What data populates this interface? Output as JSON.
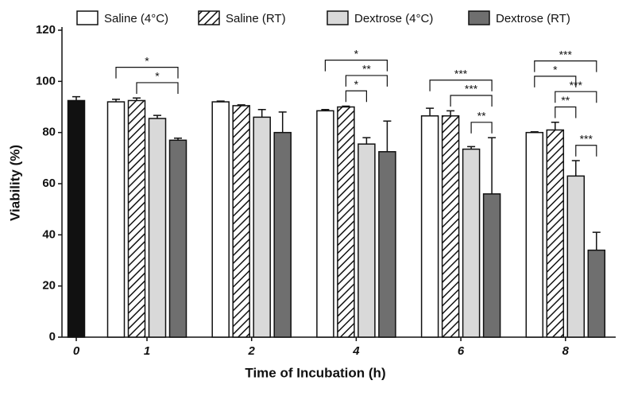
{
  "chart_data": {
    "type": "bar",
    "x_label": "Time of Incubation (h)",
    "y_label": "Viability (%)",
    "categories": [
      "0",
      "1",
      "2",
      "4",
      "6",
      "8"
    ],
    "ylim": [
      0,
      120
    ],
    "yticks": [
      0,
      20,
      40,
      60,
      80,
      100,
      120
    ],
    "series": [
      {
        "color": "#111111",
        "values": [
          92.5,
          null,
          null,
          null,
          null,
          null
        ],
        "errors": [
          1.5,
          null,
          null,
          null,
          null,
          null
        ]
      },
      {
        "name": "Saline (4°C)",
        "color": "#ffffff",
        "values": [
          null,
          92,
          92,
          88.5,
          86.5,
          80
        ],
        "errors": [
          null,
          1,
          0.3,
          0.5,
          3,
          0.3
        ]
      },
      {
        "name": "Saline (RT)",
        "color": "#ffffff",
        "pattern": "hatch",
        "values": [
          null,
          92.5,
          90.5,
          90,
          86.5,
          81
        ],
        "errors": [
          null,
          1,
          0.3,
          0.3,
          2,
          3
        ]
      },
      {
        "name": "Dextrose (4°C)",
        "color": "#d9d9d9",
        "values": [
          null,
          85.5,
          86,
          75.5,
          73.5,
          63
        ],
        "errors": [
          null,
          1.2,
          3,
          2.5,
          1,
          6
        ]
      },
      {
        "name": "Dextrose (RT)",
        "color": "#6f6f6f",
        "values": [
          null,
          77,
          80,
          72.5,
          56,
          34
        ],
        "errors": [
          null,
          0.8,
          8,
          12,
          22,
          7
        ]
      }
    ],
    "significance": [
      {
        "category": 1,
        "series": [
          2,
          4
        ],
        "label": "*"
      },
      {
        "category": 1,
        "series": [
          1,
          4
        ],
        "label": "*"
      },
      {
        "category": 3,
        "series": [
          2,
          3
        ],
        "label": "*"
      },
      {
        "category": 3,
        "series": [
          2,
          4
        ],
        "label": "**"
      },
      {
        "category": 3,
        "series": [
          1,
          4
        ],
        "label": "*"
      },
      {
        "category": 4,
        "series": [
          3,
          4
        ],
        "label": "**"
      },
      {
        "category": 4,
        "series": [
          2,
          4
        ],
        "label": "***"
      },
      {
        "category": 4,
        "series": [
          1,
          4
        ],
        "label": "***"
      },
      {
        "category": 5,
        "series": [
          3,
          4
        ],
        "label": "***"
      },
      {
        "category": 5,
        "series": [
          2,
          3
        ],
        "label": "**"
      },
      {
        "category": 5,
        "series": [
          2,
          4
        ],
        "label": "***"
      },
      {
        "category": 5,
        "series": [
          1,
          3
        ],
        "label": "*"
      },
      {
        "category": 5,
        "series": [
          1,
          4
        ],
        "label": "***"
      }
    ]
  }
}
